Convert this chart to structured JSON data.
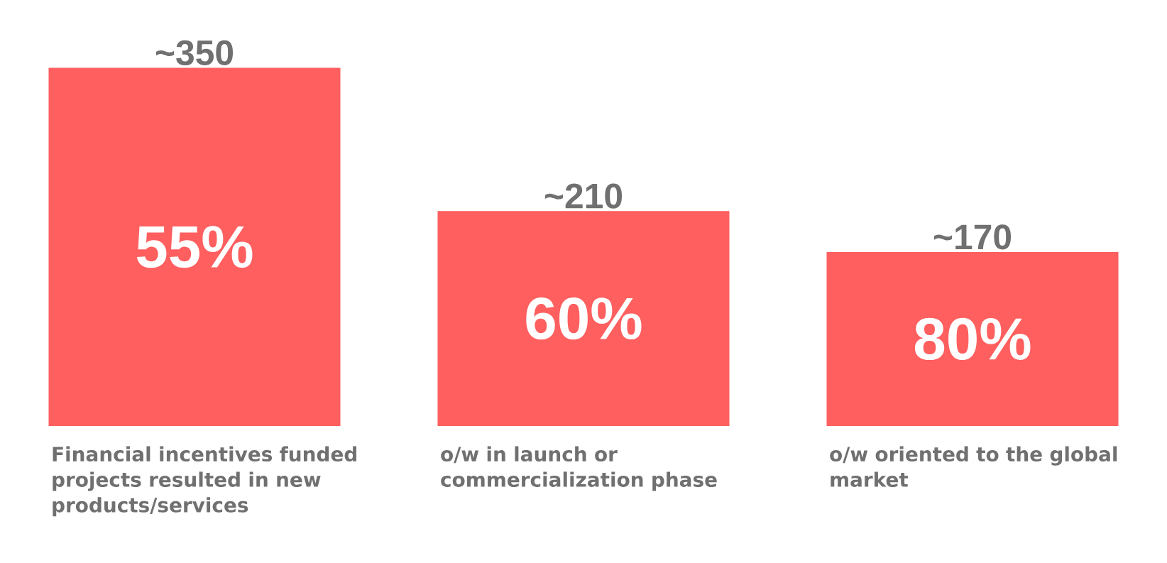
{
  "chart_data": {
    "type": "bar",
    "categories": [
      "Financial incentives funded projects resulted in new products/services",
      "o/w in launch or commercialization phase",
      "o/w oriented to the global market"
    ],
    "values": [
      350,
      210,
      170
    ],
    "value_labels": [
      "~350",
      "~210",
      "~170"
    ],
    "color": "#ff5f5f",
    "annotations": [
      "55%",
      "60%",
      "80%"
    ]
  }
}
